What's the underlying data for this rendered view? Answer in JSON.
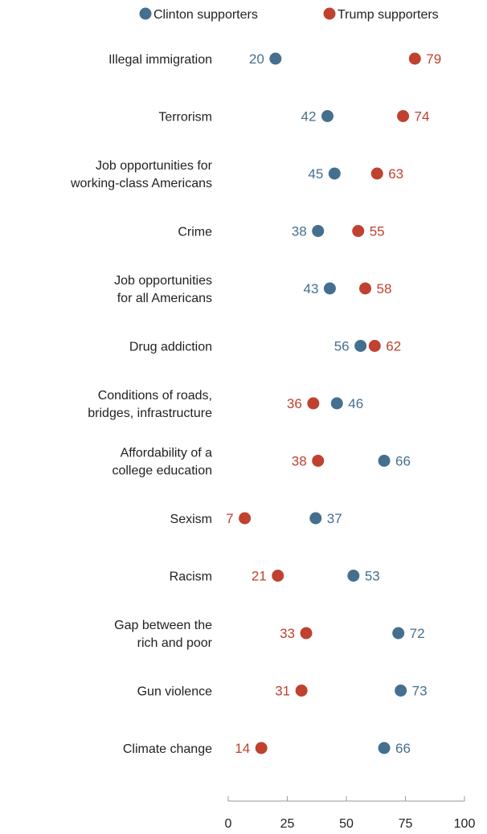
{
  "colors": {
    "clinton": "#456f8f",
    "trump": "#c0412f",
    "axis": "#999999",
    "text": "#222222"
  },
  "chart_data": {
    "type": "scatter",
    "subtype": "dot-plot",
    "title": "",
    "xlabel": "",
    "ylabel": "",
    "xlim": [
      0,
      100
    ],
    "xticks": [
      0,
      25,
      50,
      75,
      100
    ],
    "legend_position": "top",
    "series": [
      {
        "name": "Clinton supporters",
        "color": "#456f8f"
      },
      {
        "name": "Trump supporters",
        "color": "#c0412f"
      }
    ],
    "categories": [
      {
        "label": [
          "Illegal immigration"
        ],
        "clinton": 20,
        "trump": 79
      },
      {
        "label": [
          "Terrorism"
        ],
        "clinton": 42,
        "trump": 74
      },
      {
        "label": [
          "Job opportunities for",
          "working-class Americans"
        ],
        "clinton": 45,
        "trump": 63
      },
      {
        "label": [
          "Crime"
        ],
        "clinton": 38,
        "trump": 55
      },
      {
        "label": [
          "Job opportunities",
          "for all Americans"
        ],
        "clinton": 43,
        "trump": 58
      },
      {
        "label": [
          "Drug addiction"
        ],
        "clinton": 56,
        "trump": 62
      },
      {
        "label": [
          "Conditions of roads,",
          "bridges, infrastructure"
        ],
        "clinton": 46,
        "trump": 36
      },
      {
        "label": [
          "Affordability of a",
          "college education"
        ],
        "clinton": 66,
        "trump": 38
      },
      {
        "label": [
          "Sexism"
        ],
        "clinton": 37,
        "trump": 7
      },
      {
        "label": [
          "Racism"
        ],
        "clinton": 53,
        "trump": 21
      },
      {
        "label": [
          "Gap between the",
          "rich and poor"
        ],
        "clinton": 72,
        "trump": 33
      },
      {
        "label": [
          "Gun violence"
        ],
        "clinton": 73,
        "trump": 31
      },
      {
        "label": [
          "Climate change"
        ],
        "clinton": 66,
        "trump": 14
      }
    ]
  }
}
